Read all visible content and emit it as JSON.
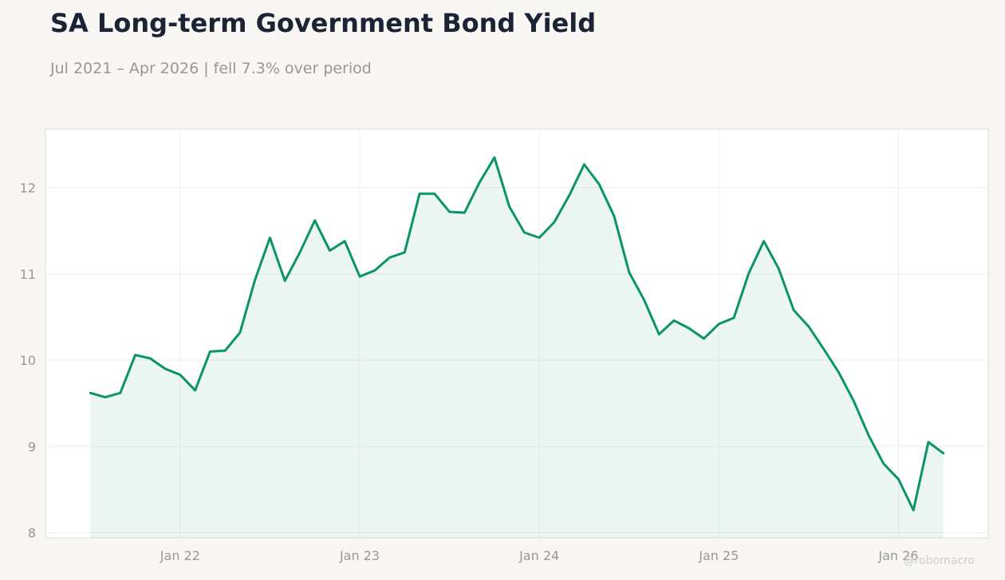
{
  "title": "SA Long-term Government Bond Yield",
  "subtitle": "Jul 2021 – Apr 2026 | fell 7.3% over period",
  "watermark": "@robomacro",
  "colors": {
    "line": "#0b9469",
    "fill": "#0b9469",
    "background": "#f8f7f4",
    "plot_background": "#ffffff"
  },
  "chart_data": {
    "type": "area",
    "x_start": "2021-07",
    "x_interval": "monthly",
    "values": [
      9.62,
      9.57,
      9.62,
      10.06,
      10.02,
      9.9,
      9.83,
      9.65,
      10.1,
      10.11,
      10.32,
      10.93,
      11.42,
      10.92,
      11.25,
      11.62,
      11.27,
      11.38,
      10.97,
      11.04,
      11.19,
      11.25,
      11.93,
      11.93,
      11.72,
      11.71,
      12.06,
      12.35,
      11.78,
      11.48,
      11.42,
      11.6,
      11.91,
      12.27,
      12.04,
      11.67,
      11.02,
      10.7,
      10.3,
      10.46,
      10.37,
      10.25,
      10.42,
      10.49,
      11.01,
      11.38,
      11.06,
      10.58,
      10.39,
      10.13,
      9.86,
      9.53,
      9.13,
      8.8,
      8.62,
      8.26,
      9.05,
      8.92
    ],
    "x_ticks": [
      "Jan 22",
      "Jan 23",
      "Jan 24",
      "Jan 25",
      "Jan 26"
    ],
    "x_tick_dates": [
      "2022-01",
      "2023-01",
      "2024-01",
      "2025-01",
      "2026-01"
    ],
    "y_ticks": [
      8,
      9,
      10,
      11,
      12
    ],
    "ylim": [
      7.94,
      12.68
    ],
    "xlim": [
      "2021-04",
      "2026-07"
    ],
    "grid": true,
    "xlabel": "",
    "ylabel": ""
  }
}
